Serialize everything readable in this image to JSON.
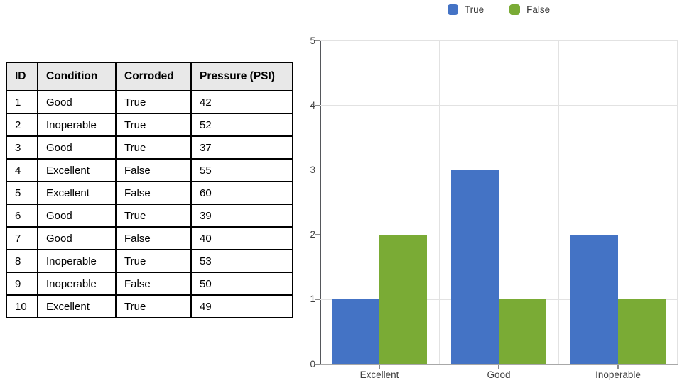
{
  "table": {
    "headers": [
      "ID",
      "Condition",
      "Corroded",
      "Pressure (PSI)"
    ],
    "rows": [
      [
        "1",
        "Good",
        "True",
        "42"
      ],
      [
        "2",
        "Inoperable",
        "True",
        "52"
      ],
      [
        "3",
        "Good",
        "True",
        "37"
      ],
      [
        "4",
        "Excellent",
        "False",
        "55"
      ],
      [
        "5",
        "Excellent",
        "False",
        "60"
      ],
      [
        "6",
        "Good",
        "True",
        "39"
      ],
      [
        "7",
        "Good",
        "False",
        "40"
      ],
      [
        "8",
        "Inoperable",
        "True",
        "53"
      ],
      [
        "9",
        "Inoperable",
        "False",
        "50"
      ],
      [
        "10",
        "Excellent",
        "True",
        "49"
      ]
    ]
  },
  "chart_data": {
    "type": "bar",
    "title": "",
    "categories": [
      "Excellent",
      "Good",
      "Inoperable"
    ],
    "series": [
      {
        "name": "True",
        "color": "#4473c5",
        "values": [
          1,
          3,
          2
        ]
      },
      {
        "name": "False",
        "color": "#7aab35",
        "values": [
          2,
          1,
          1
        ]
      }
    ],
    "xlabel": "",
    "ylabel": "",
    "ylim": [
      0,
      5
    ],
    "yticks": [
      0,
      1,
      2,
      3,
      4,
      5
    ],
    "grid": true,
    "legend_position": "top"
  }
}
